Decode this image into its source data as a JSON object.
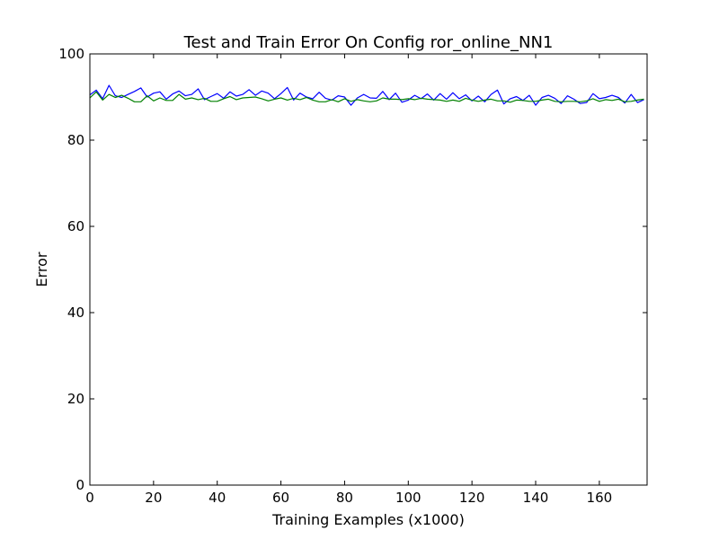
{
  "chart_data": {
    "type": "line",
    "title": "Test and Train Error On Config ror_online_NN1",
    "xlabel": "Training Examples (x1000)",
    "ylabel": "Error",
    "xlim": [
      0,
      175
    ],
    "ylim": [
      0,
      100
    ],
    "xticks": [
      "0",
      "20",
      "40",
      "60",
      "80",
      "100",
      "120",
      "140",
      "160"
    ],
    "yticks": [
      "0",
      "20",
      "40",
      "60",
      "80",
      "100"
    ],
    "grid": false,
    "legend": "none",
    "series": [
      {
        "color": "#0000ff",
        "x": [
          0,
          2,
          4,
          6,
          8,
          10,
          12,
          14,
          16,
          18,
          20,
          22,
          24,
          26,
          28,
          30,
          32,
          34,
          36,
          38,
          40,
          42,
          44,
          46,
          48,
          50,
          52,
          54,
          56,
          58,
          60,
          62,
          64,
          66,
          68,
          70,
          72,
          74,
          76,
          78,
          80,
          82,
          84,
          86,
          88,
          90,
          92,
          94,
          96,
          98,
          100,
          102,
          104,
          106,
          108,
          110,
          112,
          114,
          116,
          118,
          120,
          122,
          124,
          126,
          128,
          130,
          132,
          134,
          136,
          138,
          140,
          142,
          144,
          146,
          148,
          150,
          152,
          154,
          156,
          158,
          160,
          162,
          164,
          166,
          168,
          170,
          172,
          174
        ],
        "y": [
          90.5,
          91.6,
          89.6,
          92.7,
          90.3,
          89.9,
          90.6,
          91.3,
          92.1,
          90.0,
          90.9,
          91.2,
          89.5,
          90.7,
          91.4,
          90.3,
          90.6,
          91.9,
          89.4,
          90.1,
          90.8,
          89.7,
          91.2,
          90.2,
          90.6,
          91.7,
          90.4,
          91.4,
          90.9,
          89.6,
          90.8,
          92.2,
          89.3,
          90.9,
          90.0,
          89.6,
          91.1,
          89.7,
          89.3,
          90.3,
          90.0,
          88.1,
          89.8,
          90.6,
          89.8,
          89.7,
          91.3,
          89.4,
          90.9,
          88.8,
          89.3,
          90.4,
          89.6,
          90.7,
          89.3,
          90.8,
          89.5,
          91.0,
          89.6,
          90.5,
          89.1,
          90.2,
          88.9,
          90.6,
          91.6,
          88.4,
          89.6,
          90.1,
          89.2,
          90.4,
          88.1,
          89.9,
          90.4,
          89.7,
          88.5,
          90.3,
          89.5,
          88.5,
          88.7,
          90.8,
          89.6,
          89.9,
          90.4,
          89.9,
          88.6,
          90.6,
          88.7,
          89.4
        ]
      },
      {
        "color": "#008000",
        "x": [
          0,
          2,
          4,
          6,
          8,
          10,
          12,
          14,
          16,
          18,
          20,
          22,
          24,
          26,
          28,
          30,
          32,
          34,
          36,
          38,
          40,
          42,
          44,
          46,
          48,
          50,
          52,
          54,
          56,
          58,
          60,
          62,
          64,
          66,
          68,
          70,
          72,
          74,
          76,
          78,
          80,
          82,
          84,
          86,
          88,
          90,
          92,
          94,
          96,
          98,
          100,
          102,
          104,
          106,
          108,
          110,
          112,
          114,
          116,
          118,
          120,
          122,
          124,
          126,
          128,
          130,
          132,
          134,
          136,
          138,
          140,
          142,
          144,
          146,
          148,
          150,
          152,
          154,
          156,
          158,
          160,
          162,
          164,
          166,
          168,
          170,
          172,
          174
        ],
        "y": [
          89.8,
          91.2,
          89.3,
          90.6,
          89.9,
          90.4,
          89.7,
          88.9,
          88.9,
          90.3,
          89.1,
          89.8,
          89.2,
          89.2,
          90.6,
          89.5,
          89.8,
          89.4,
          89.7,
          89.0,
          89.0,
          89.6,
          90.1,
          89.4,
          89.8,
          89.9,
          90.0,
          89.6,
          89.1,
          89.5,
          89.8,
          89.3,
          89.7,
          89.4,
          89.9,
          89.3,
          88.9,
          88.9,
          89.4,
          88.9,
          89.6,
          89.0,
          89.4,
          89.1,
          88.9,
          89.1,
          89.8,
          89.5,
          89.5,
          89.4,
          89.6,
          89.4,
          89.7,
          89.5,
          89.4,
          89.3,
          89.0,
          89.3,
          89.0,
          89.7,
          89.3,
          89.0,
          89.3,
          89.5,
          89.1,
          89.1,
          88.8,
          89.3,
          89.2,
          89.0,
          89.0,
          89.3,
          89.5,
          89.0,
          88.9,
          89.0,
          89.0,
          88.9,
          89.1,
          89.6,
          89.0,
          89.4,
          89.2,
          89.5,
          88.9,
          89.0,
          89.3,
          89.5
        ]
      }
    ]
  }
}
